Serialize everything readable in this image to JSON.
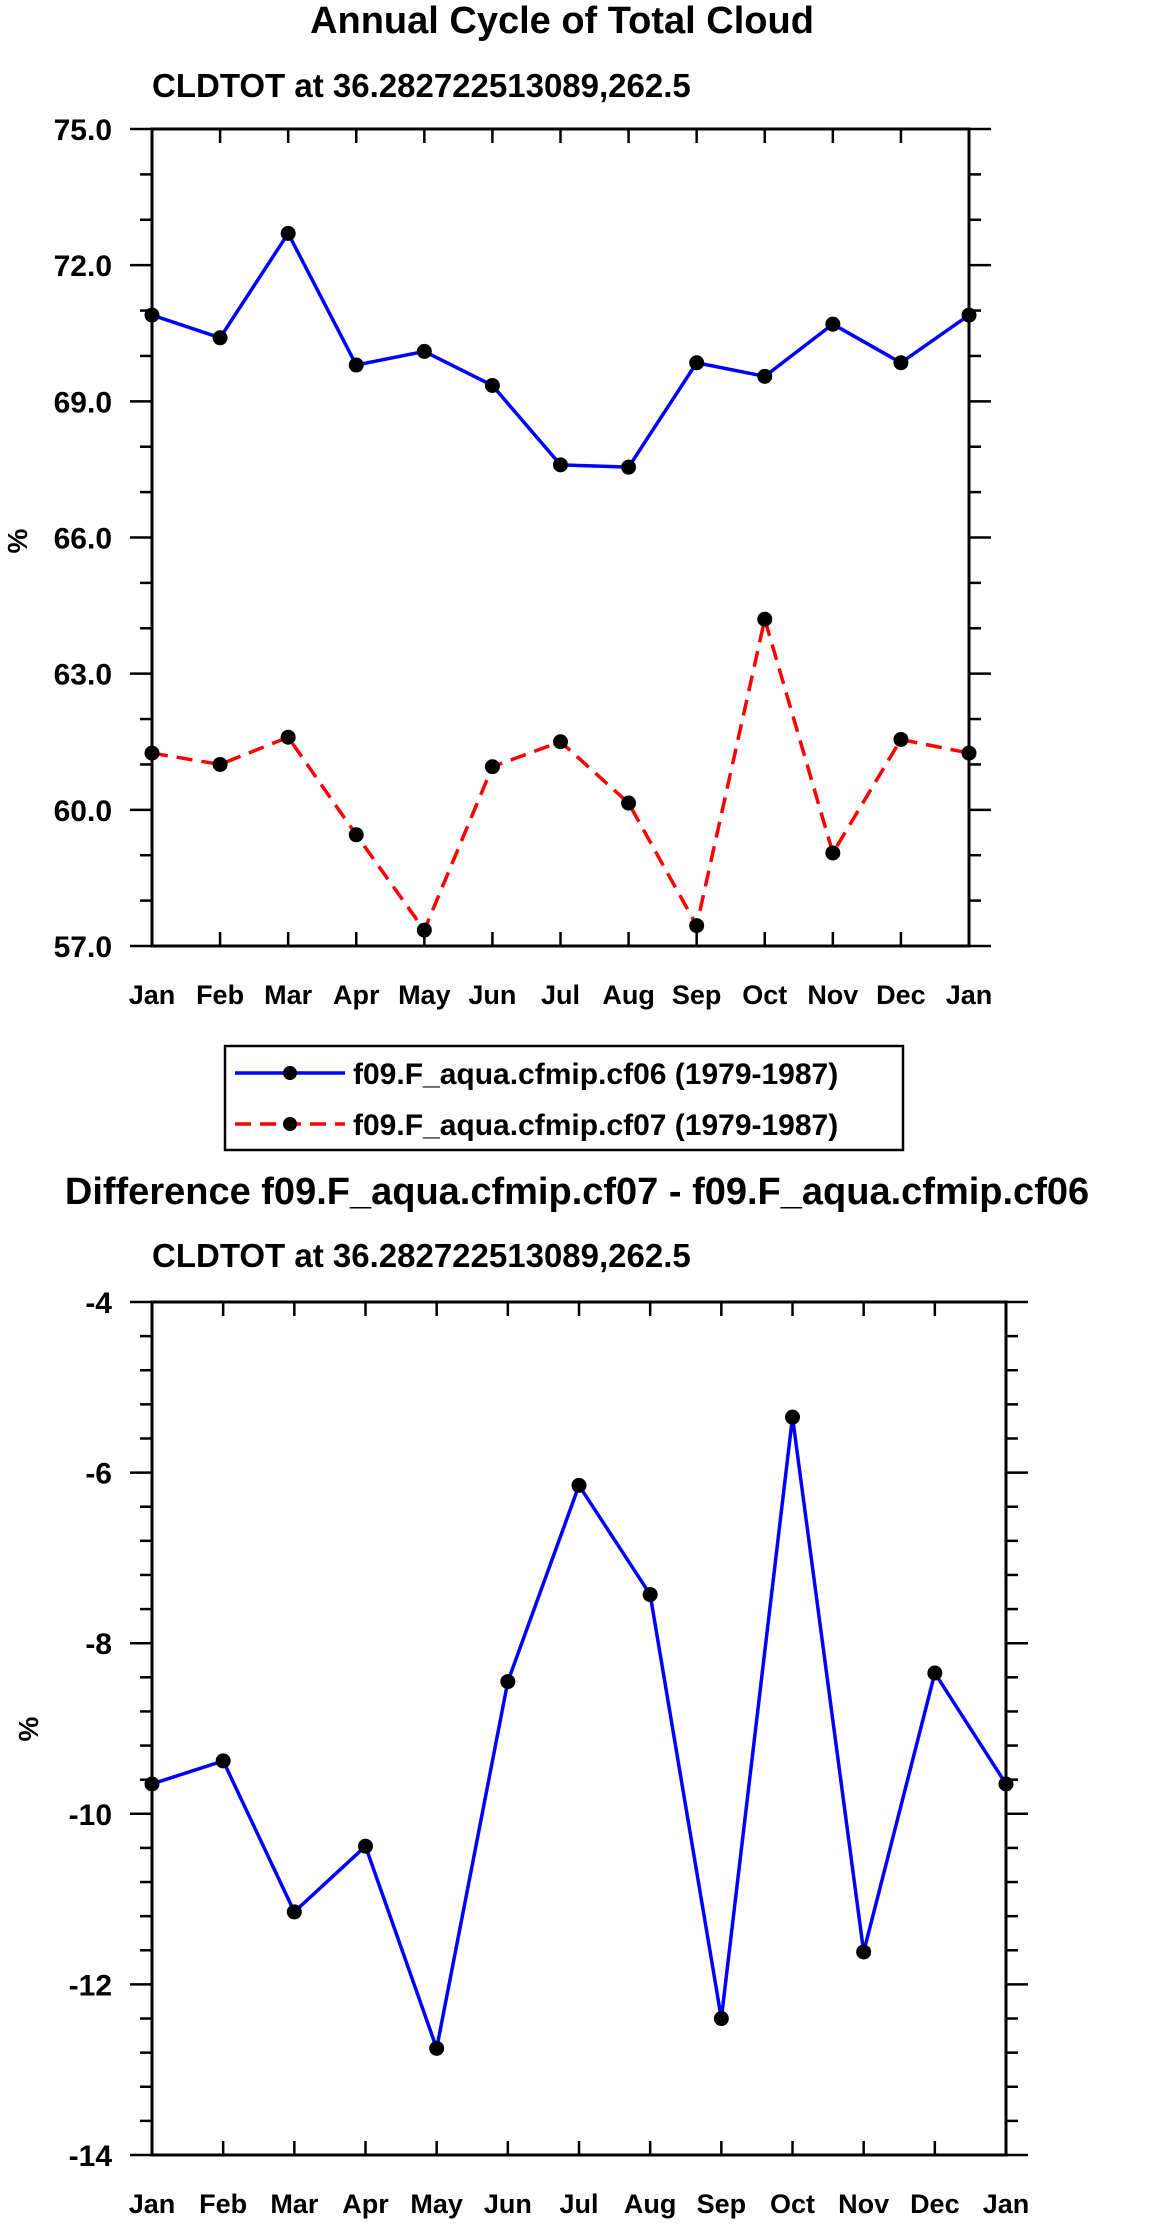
{
  "chart_data": [
    {
      "type": "line",
      "title": "Annual Cycle of Total Cloud",
      "subtitle": "CLDTOT at 36.282722513089,262.5",
      "xlabel": "",
      "ylabel": "%",
      "categories": [
        "Jan",
        "Feb",
        "Mar",
        "Apr",
        "May",
        "Jun",
        "Jul",
        "Aug",
        "Sep",
        "Oct",
        "Nov",
        "Dec",
        "Jan"
      ],
      "ylim": [
        57.0,
        75.0
      ],
      "yticks": [
        "57.0",
        "60.0",
        "63.0",
        "66.0",
        "69.0",
        "72.0",
        "75.0"
      ],
      "series": [
        {
          "name": "f09.F_aqua.cfmip.cf06 (1979-1987)",
          "color": "#0000ff",
          "dash": "solid",
          "values": [
            70.9,
            70.4,
            72.7,
            69.8,
            70.1,
            69.35,
            67.6,
            67.55,
            69.85,
            69.55,
            70.7,
            69.85,
            70.9
          ]
        },
        {
          "name": "f09.F_aqua.cfmip.cf07 (1979-1987)",
          "color": "#ff0000",
          "dash": "dashed",
          "values": [
            61.25,
            61.0,
            61.6,
            59.45,
            57.35,
            60.95,
            61.5,
            60.15,
            57.45,
            64.2,
            59.05,
            61.55,
            61.25
          ]
        }
      ],
      "legend": {
        "position": "bottom-center",
        "entries": [
          "f09.F_aqua.cfmip.cf06 (1979-1987)",
          "f09.F_aqua.cfmip.cf07 (1979-1987)"
        ]
      }
    },
    {
      "type": "line",
      "title": "Difference f09.F_aqua.cfmip.cf07 - f09.F_aqua.cfmip.cf06",
      "subtitle": "CLDTOT at 36.282722513089,262.5",
      "xlabel": "",
      "ylabel": "%",
      "categories": [
        "Jan",
        "Feb",
        "Mar",
        "Apr",
        "May",
        "Jun",
        "Jul",
        "Aug",
        "Sep",
        "Oct",
        "Nov",
        "Dec",
        "Jan"
      ],
      "ylim": [
        -14,
        -4
      ],
      "yticks": [
        "-14",
        "-12",
        "-10",
        "-8",
        "-6",
        "-4"
      ],
      "series": [
        {
          "name": "Difference",
          "color": "#0000ff",
          "dash": "solid",
          "values": [
            -9.65,
            -9.38,
            -11.15,
            -10.38,
            -12.75,
            -8.45,
            -6.15,
            -7.43,
            -12.4,
            -5.35,
            -11.62,
            -8.35,
            -9.65
          ]
        }
      ]
    }
  ]
}
